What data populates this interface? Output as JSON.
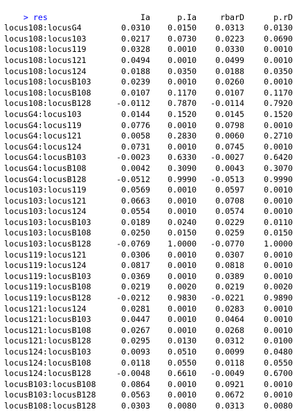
{
  "console": {
    "prompt": ">",
    "command": "res",
    "colors": {
      "prompt": "#0000ff",
      "output": "#000000",
      "background": "#ffffff"
    }
  },
  "table": {
    "headers": [
      "Ia",
      "p.Ia",
      "rbarD",
      "p.rD"
    ],
    "rows": [
      {
        "name": "locus108:locusG4",
        "values": [
          "0.0310",
          "0.0150",
          "0.0313",
          "0.0130"
        ]
      },
      {
        "name": "locus108:locus103",
        "values": [
          "0.0217",
          "0.0730",
          "0.0223",
          "0.0690"
        ]
      },
      {
        "name": "locus108:locus119",
        "values": [
          "0.0328",
          "0.0010",
          "0.0330",
          "0.0010"
        ]
      },
      {
        "name": "locus108:locus121",
        "values": [
          "0.0494",
          "0.0010",
          "0.0499",
          "0.0010"
        ]
      },
      {
        "name": "locus108:locus124",
        "values": [
          "0.0188",
          "0.0350",
          "0.0188",
          "0.0350"
        ]
      },
      {
        "name": "locus108:locusB103",
        "values": [
          "0.0239",
          "0.0010",
          "0.0260",
          "0.0010"
        ]
      },
      {
        "name": "locus108:locusB108",
        "values": [
          "0.0107",
          "0.1170",
          "0.0107",
          "0.1170"
        ]
      },
      {
        "name": "locus108:locusB128",
        "values": [
          "-0.0112",
          "0.7870",
          "-0.0114",
          "0.7920"
        ]
      },
      {
        "name": "locusG4:locus103",
        "values": [
          "0.0144",
          "0.1520",
          "0.0145",
          "0.1520"
        ]
      },
      {
        "name": "locusG4:locus119",
        "values": [
          "0.0776",
          "0.0010",
          "0.0798",
          "0.0010"
        ]
      },
      {
        "name": "locusG4:locus121",
        "values": [
          "0.0058",
          "0.2830",
          "0.0060",
          "0.2710"
        ]
      },
      {
        "name": "locusG4:locus124",
        "values": [
          "0.0731",
          "0.0010",
          "0.0745",
          "0.0010"
        ]
      },
      {
        "name": "locusG4:locusB103",
        "values": [
          "-0.0023",
          "0.6330",
          "-0.0027",
          "0.6420"
        ]
      },
      {
        "name": "locusG4:locusB108",
        "values": [
          "0.0042",
          "0.3090",
          "0.0043",
          "0.3070"
        ]
      },
      {
        "name": "locusG4:locusB128",
        "values": [
          "-0.0512",
          "0.9990",
          "-0.0513",
          "0.9990"
        ]
      },
      {
        "name": "locus103:locus119",
        "values": [
          "0.0569",
          "0.0010",
          "0.0597",
          "0.0010"
        ]
      },
      {
        "name": "locus103:locus121",
        "values": [
          "0.0663",
          "0.0010",
          "0.0708",
          "0.0010"
        ]
      },
      {
        "name": "locus103:locus124",
        "values": [
          "0.0554",
          "0.0010",
          "0.0574",
          "0.0010"
        ]
      },
      {
        "name": "locus103:locusB103",
        "values": [
          "0.0189",
          "0.0240",
          "0.0229",
          "0.0110"
        ]
      },
      {
        "name": "locus103:locusB108",
        "values": [
          "0.0250",
          "0.0150",
          "0.0259",
          "0.0150"
        ]
      },
      {
        "name": "locus103:locusB128",
        "values": [
          "-0.0769",
          "1.0000",
          "-0.0770",
          "1.0000"
        ]
      },
      {
        "name": "locus119:locus121",
        "values": [
          "0.0306",
          "0.0010",
          "0.0307",
          "0.0010"
        ]
      },
      {
        "name": "locus119:locus124",
        "values": [
          "0.0817",
          "0.0010",
          "0.0818",
          "0.0010"
        ]
      },
      {
        "name": "locus119:locusB103",
        "values": [
          "0.0369",
          "0.0010",
          "0.0389",
          "0.0010"
        ]
      },
      {
        "name": "locus119:locusB108",
        "values": [
          "0.0219",
          "0.0020",
          "0.0219",
          "0.0020"
        ]
      },
      {
        "name": "locus119:locusB128",
        "values": [
          "-0.0212",
          "0.9830",
          "-0.0221",
          "0.9890"
        ]
      },
      {
        "name": "locus121:locus124",
        "values": [
          "0.0281",
          "0.0010",
          "0.0283",
          "0.0010"
        ]
      },
      {
        "name": "locus121:locusB103",
        "values": [
          "0.0447",
          "0.0010",
          "0.0464",
          "0.0010"
        ]
      },
      {
        "name": "locus121:locusB108",
        "values": [
          "0.0267",
          "0.0010",
          "0.0268",
          "0.0010"
        ]
      },
      {
        "name": "locus121:locusB128",
        "values": [
          "0.0295",
          "0.0130",
          "0.0312",
          "0.0100"
        ]
      },
      {
        "name": "locus124:locusB103",
        "values": [
          "0.0093",
          "0.0510",
          "0.0099",
          "0.0480"
        ]
      },
      {
        "name": "locus124:locusB108",
        "values": [
          "0.0118",
          "0.0550",
          "0.0118",
          "0.0550"
        ]
      },
      {
        "name": "locus124:locusB128",
        "values": [
          "-0.0048",
          "0.6610",
          "-0.0049",
          "0.6700"
        ]
      },
      {
        "name": "locusB103:locusB108",
        "values": [
          "0.0864",
          "0.0010",
          "0.0921",
          "0.0010"
        ]
      },
      {
        "name": "locusB103:locusB128",
        "values": [
          "0.0563",
          "0.0010",
          "0.0672",
          "0.0010"
        ]
      },
      {
        "name": "locusB108:locusB128",
        "values": [
          "0.0303",
          "0.0080",
          "0.0313",
          "0.0080"
        ]
      }
    ]
  }
}
